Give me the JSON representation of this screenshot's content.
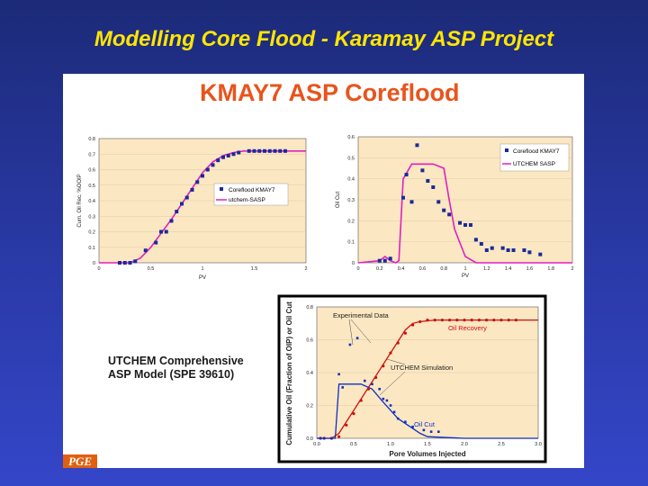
{
  "slide": {
    "title": "Modelling Core Flood - Karamay ASP Project",
    "panel_title": "KMAY7 ASP Coreflood",
    "note_line1": "UTCHEM Comprehensive",
    "note_line2": "ASP Model (SPE 39610)",
    "logo_text": "PGE",
    "colors": {
      "accent_title": "#ffe600",
      "panel_title": "#e8541c",
      "magenta": "#e020c0",
      "marker": "#1a2a9a",
      "red": "#cc1010",
      "blue": "#1030c0"
    }
  },
  "chart_data": [
    {
      "id": "recovery",
      "type": "line",
      "xlabel": "PV",
      "ylabel": "Cum. Oil Rec. %OOIP",
      "xlim": [
        0,
        2
      ],
      "ylim": [
        0,
        0.8
      ],
      "xticks": [
        "0",
        "0.5",
        "1",
        "1.5",
        "2"
      ],
      "yticks": [
        "0",
        "0.1",
        "0.2",
        "0.3",
        "0.4",
        "0.5",
        "0.6",
        "0.7",
        "0.8"
      ],
      "legend": [
        "Coreflood KMAY7",
        "utchem-SASP"
      ],
      "legend_position": "center-right",
      "series": [
        {
          "name": "Coreflood KMAY7",
          "kind": "points",
          "x": [
            0.2,
            0.25,
            0.3,
            0.35,
            0.45,
            0.55,
            0.6,
            0.65,
            0.7,
            0.75,
            0.8,
            0.85,
            0.9,
            0.95,
            1.0,
            1.05,
            1.1,
            1.15,
            1.2,
            1.25,
            1.3,
            1.35,
            1.45,
            1.5,
            1.55,
            1.6,
            1.65,
            1.7,
            1.75,
            1.8
          ],
          "y": [
            0,
            0,
            0,
            0.01,
            0.08,
            0.13,
            0.2,
            0.2,
            0.27,
            0.33,
            0.38,
            0.42,
            0.47,
            0.52,
            0.56,
            0.6,
            0.63,
            0.66,
            0.68,
            0.69,
            0.7,
            0.71,
            0.72,
            0.72,
            0.72,
            0.72,
            0.72,
            0.72,
            0.72,
            0.72
          ]
        },
        {
          "name": "utchem-SASP",
          "kind": "line",
          "x": [
            0,
            0.3,
            0.4,
            0.5,
            0.6,
            0.7,
            0.8,
            0.9,
            1.0,
            1.1,
            1.2,
            1.3,
            1.4,
            1.6,
            1.8,
            2.0
          ],
          "y": [
            0,
            0,
            0.03,
            0.1,
            0.19,
            0.28,
            0.38,
            0.48,
            0.58,
            0.65,
            0.69,
            0.71,
            0.72,
            0.72,
            0.72,
            0.72
          ]
        }
      ]
    },
    {
      "id": "oilcut",
      "type": "line",
      "xlabel": "PV",
      "ylabel": "Oil Cut",
      "xlim": [
        0,
        2
      ],
      "ylim": [
        0,
        0.6
      ],
      "xticks": [
        "0",
        "0.2",
        "0.4",
        "0.6",
        "0.8",
        "1",
        "1.2",
        "1.4",
        "1.6",
        "1.8",
        "2"
      ],
      "yticks": [
        "0",
        "0.1",
        "0.2",
        "0.3",
        "0.4",
        "0.5",
        "0.6"
      ],
      "legend": [
        "Coreflood KMAY7",
        "UTCHEM SASP"
      ],
      "legend_position": "top-right",
      "series": [
        {
          "name": "Coreflood KMAY7",
          "kind": "points",
          "x": [
            0.2,
            0.25,
            0.3,
            0.42,
            0.45,
            0.5,
            0.55,
            0.6,
            0.65,
            0.7,
            0.75,
            0.8,
            0.85,
            0.95,
            1.0,
            1.05,
            1.1,
            1.15,
            1.2,
            1.25,
            1.35,
            1.4,
            1.45,
            1.55,
            1.6,
            1.7
          ],
          "y": [
            0.01,
            0.01,
            0.02,
            0.31,
            0.42,
            0.29,
            0.56,
            0.44,
            0.39,
            0.36,
            0.29,
            0.25,
            0.23,
            0.19,
            0.18,
            0.18,
            0.11,
            0.09,
            0.06,
            0.07,
            0.07,
            0.06,
            0.06,
            0.06,
            0.05,
            0.04
          ]
        },
        {
          "name": "UTCHEM SASP",
          "kind": "line",
          "x": [
            0,
            0.2,
            0.25,
            0.3,
            0.35,
            0.38,
            0.42,
            0.5,
            0.6,
            0.7,
            0.8,
            0.85,
            0.9,
            1.0,
            1.1,
            1.2,
            1.6,
            2.0
          ],
          "y": [
            0,
            0.01,
            0.03,
            0.01,
            0.0,
            0.01,
            0.4,
            0.47,
            0.47,
            0.47,
            0.45,
            0.3,
            0.16,
            0.03,
            0.0,
            0.0,
            0.0,
            0.0
          ]
        }
      ]
    },
    {
      "id": "utchem",
      "type": "line",
      "xlabel": "Pore Volumes Injected",
      "ylabel": "Cumulative Oil (Fraction of OIP) or Oil Cut",
      "xlim": [
        0,
        3
      ],
      "ylim": [
        0,
        0.8
      ],
      "xticks": [
        "0.0",
        "0.5",
        "1.0",
        "1.5",
        "2.0",
        "2.5",
        "3.0"
      ],
      "yticks": [
        "0.0",
        "0.2",
        "0.4",
        "0.6",
        "0.8"
      ],
      "annotations": [
        "Experimental Data",
        "Oil Recovery",
        "UTCHEM Simulation",
        "Oil Cut"
      ],
      "series": [
        {
          "name": "Oil Recovery",
          "kind": "points_red",
          "x": [
            0.05,
            0.1,
            0.2,
            0.3,
            0.4,
            0.5,
            0.6,
            0.7,
            0.8,
            0.9,
            1.0,
            1.1,
            1.2,
            1.3,
            1.4,
            1.5,
            1.6,
            1.7,
            1.8,
            1.9,
            2.0,
            2.1,
            2.2,
            2.3,
            2.4,
            2.5,
            2.6,
            2.7
          ],
          "y": [
            0,
            0,
            0,
            0.01,
            0.08,
            0.15,
            0.23,
            0.3,
            0.37,
            0.44,
            0.52,
            0.58,
            0.64,
            0.69,
            0.71,
            0.72,
            0.72,
            0.72,
            0.72,
            0.72,
            0.72,
            0.72,
            0.72,
            0.72,
            0.72,
            0.72,
            0.72,
            0.72
          ]
        },
        {
          "name": "Experimental Data",
          "kind": "points_blue",
          "x": [
            0.05,
            0.1,
            0.2,
            0.3,
            0.35,
            0.45,
            0.55,
            0.65,
            0.75,
            0.85,
            0.9,
            0.95,
            1.0,
            1.05,
            1.1,
            1.2,
            1.3,
            1.45,
            1.55,
            1.65
          ],
          "y": [
            0,
            0.0,
            0.0,
            0.39,
            0.31,
            0.57,
            0.61,
            0.35,
            0.33,
            0.3,
            0.24,
            0.23,
            0.2,
            0.16,
            0.12,
            0.1,
            0.07,
            0.05,
            0.04,
            0.04
          ]
        },
        {
          "name": "Recovery Simulation",
          "kind": "line_red",
          "x": [
            0,
            0.2,
            0.3,
            0.5,
            0.8,
            1.0,
            1.2,
            1.3,
            1.4,
            1.6,
            2.0,
            2.5,
            3.0
          ],
          "y": [
            0,
            0,
            0.03,
            0.17,
            0.38,
            0.52,
            0.66,
            0.7,
            0.71,
            0.72,
            0.72,
            0.72,
            0.72
          ]
        },
        {
          "name": "Oil Cut Simulation",
          "kind": "line_blue",
          "x": [
            0,
            0.2,
            0.25,
            0.3,
            0.6,
            0.75,
            0.9,
            1.1,
            1.3,
            1.4,
            1.5,
            2.0,
            3.0
          ],
          "y": [
            0,
            0,
            0.0,
            0.33,
            0.33,
            0.3,
            0.22,
            0.12,
            0.06,
            0.03,
            0.01,
            0.0,
            0.0
          ]
        }
      ]
    }
  ]
}
